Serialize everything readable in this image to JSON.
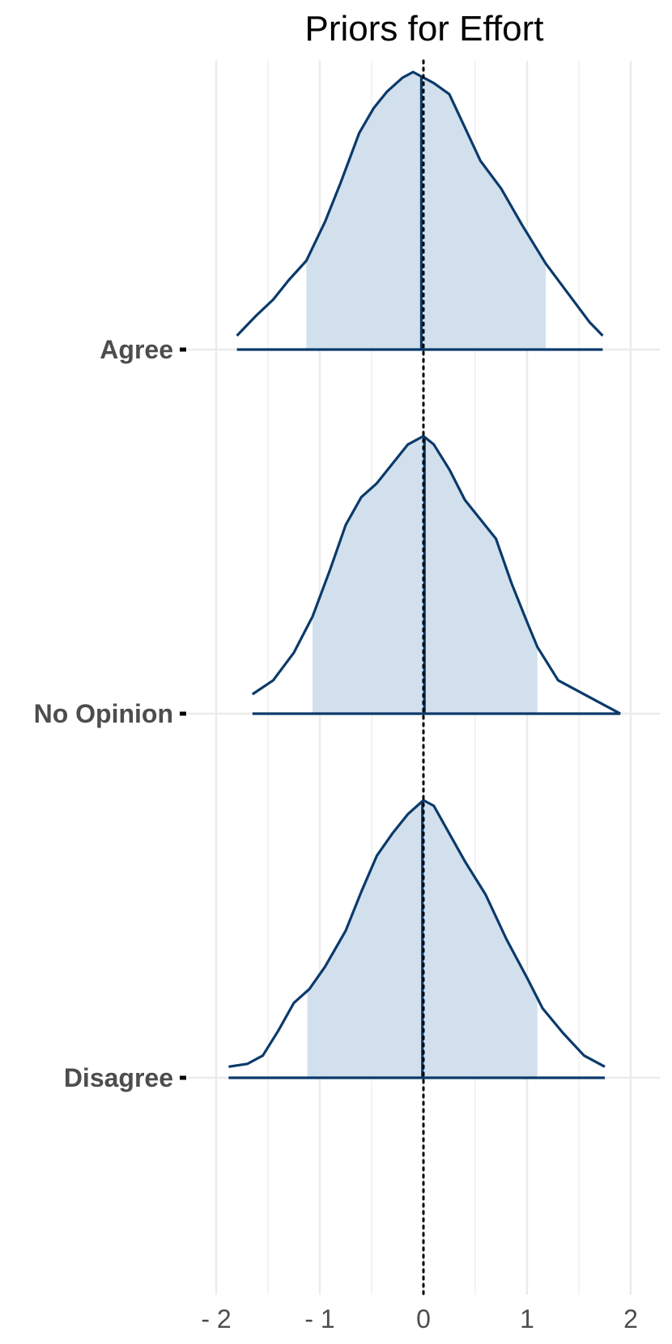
{
  "chart_data": {
    "type": "ridgeline density",
    "title": "Priors for Effort",
    "xlabel": "",
    "ylabel": "",
    "xlim": [
      -2.1,
      2.3
    ],
    "x_ticks": [
      {
        "value": -2,
        "label": "- 2"
      },
      {
        "value": -1,
        "label": "- 1"
      },
      {
        "value": 0,
        "label": "0"
      },
      {
        "value": 1,
        "label": "1"
      },
      {
        "value": 2,
        "label": "2"
      }
    ],
    "minor_grid_x": [
      -1.5,
      -0.5,
      0.5,
      1.5
    ],
    "reference_line_x": 0,
    "grid": true,
    "colors": {
      "line": "#0b3a6b",
      "fill": "#d1e0ec",
      "grid": "#ebebeb",
      "reference": "#000000"
    },
    "series": [
      {
        "label": "Agree",
        "range": [
          -1.8,
          1.73
        ],
        "interval": [
          -1.13,
          1.18
        ],
        "median": -0.02,
        "density": [
          [
            -1.8,
            0.05
          ],
          [
            -1.62,
            0.12
          ],
          [
            -1.45,
            0.18
          ],
          [
            -1.3,
            0.25
          ],
          [
            -1.13,
            0.32
          ],
          [
            -0.95,
            0.46
          ],
          [
            -0.8,
            0.6
          ],
          [
            -0.62,
            0.78
          ],
          [
            -0.48,
            0.87
          ],
          [
            -0.35,
            0.93
          ],
          [
            -0.2,
            0.98
          ],
          [
            -0.1,
            1.0
          ],
          [
            0.0,
            0.98
          ],
          [
            0.1,
            0.96
          ],
          [
            0.25,
            0.92
          ],
          [
            0.4,
            0.8
          ],
          [
            0.55,
            0.68
          ],
          [
            0.75,
            0.58
          ],
          [
            0.95,
            0.45
          ],
          [
            1.18,
            0.31
          ],
          [
            1.4,
            0.2
          ],
          [
            1.6,
            0.1
          ],
          [
            1.73,
            0.05
          ]
        ]
      },
      {
        "label": "No Opinion",
        "range": [
          -1.65,
          1.9
        ],
        "interval": [
          -1.07,
          1.1
        ],
        "median": 0.01,
        "density": [
          [
            -1.65,
            0.07
          ],
          [
            -1.45,
            0.12
          ],
          [
            -1.25,
            0.22
          ],
          [
            -1.07,
            0.35
          ],
          [
            -0.9,
            0.52
          ],
          [
            -0.75,
            0.68
          ],
          [
            -0.6,
            0.78
          ],
          [
            -0.45,
            0.83
          ],
          [
            -0.3,
            0.9
          ],
          [
            -0.15,
            0.97
          ],
          [
            0.0,
            1.0
          ],
          [
            0.1,
            0.97
          ],
          [
            0.25,
            0.88
          ],
          [
            0.4,
            0.77
          ],
          [
            0.55,
            0.7
          ],
          [
            0.7,
            0.63
          ],
          [
            0.85,
            0.47
          ],
          [
            1.0,
            0.33
          ],
          [
            1.1,
            0.24
          ],
          [
            1.3,
            0.12
          ],
          [
            1.5,
            0.08
          ],
          [
            1.7,
            0.04
          ],
          [
            1.9,
            0.0
          ]
        ]
      },
      {
        "label": "Disagree",
        "range": [
          -1.88,
          1.75
        ],
        "interval": [
          -1.12,
          1.1
        ],
        "median": -0.01,
        "density": [
          [
            -1.88,
            0.04
          ],
          [
            -1.7,
            0.05
          ],
          [
            -1.55,
            0.08
          ],
          [
            -1.4,
            0.17
          ],
          [
            -1.25,
            0.27
          ],
          [
            -1.1,
            0.32
          ],
          [
            -0.95,
            0.4
          ],
          [
            -0.75,
            0.53
          ],
          [
            -0.6,
            0.67
          ],
          [
            -0.45,
            0.8
          ],
          [
            -0.3,
            0.88
          ],
          [
            -0.15,
            0.95
          ],
          [
            0.0,
            1.0
          ],
          [
            0.1,
            0.98
          ],
          [
            0.25,
            0.88
          ],
          [
            0.4,
            0.78
          ],
          [
            0.6,
            0.66
          ],
          [
            0.8,
            0.5
          ],
          [
            1.0,
            0.36
          ],
          [
            1.15,
            0.25
          ],
          [
            1.35,
            0.16
          ],
          [
            1.55,
            0.08
          ],
          [
            1.75,
            0.04
          ]
        ]
      }
    ]
  }
}
